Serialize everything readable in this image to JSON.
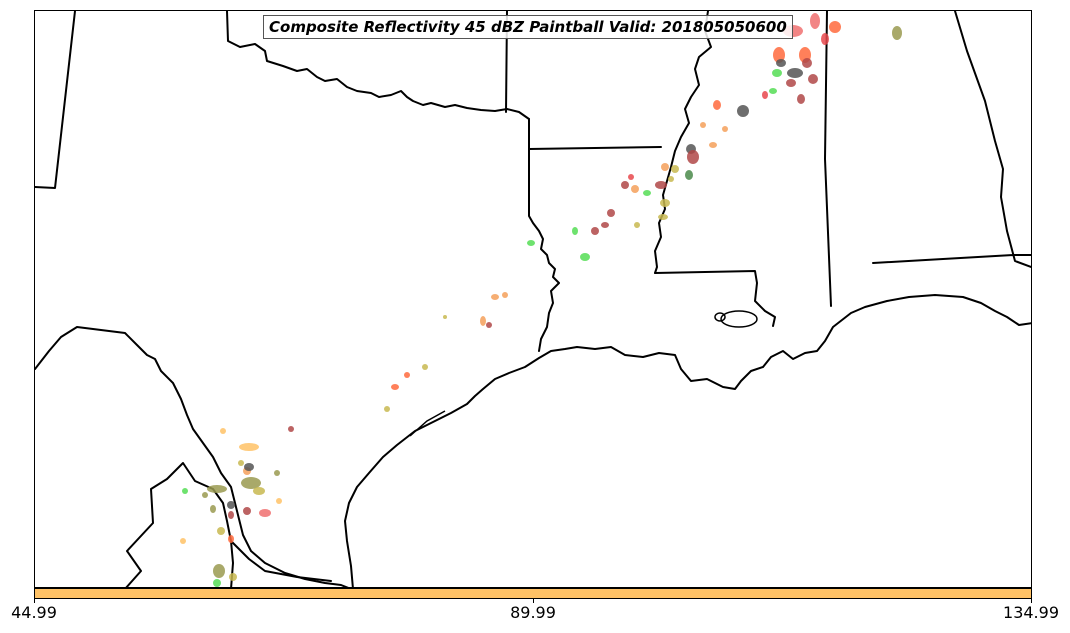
{
  "title": "Composite Reflectivity 45 dBZ Paintball Valid: 201805050600",
  "colorbar": {
    "color": "#ffc266",
    "min": 44.99,
    "max": 134.99,
    "tick_labels": [
      "44.99",
      "89.99",
      "134.99"
    ]
  },
  "palette": {
    "red": "#e8484c",
    "light_red": "#f07070",
    "orange": "#ff6a3d",
    "light_orange": "#f5a05a",
    "yellow_orange": "#ffc266",
    "olive": "#9a9a50",
    "khaki": "#c8b850",
    "green": "#55dd55",
    "dark_gray": "#555555",
    "maroon": "#b04848",
    "dark_green": "#4a8a4a"
  }
}
